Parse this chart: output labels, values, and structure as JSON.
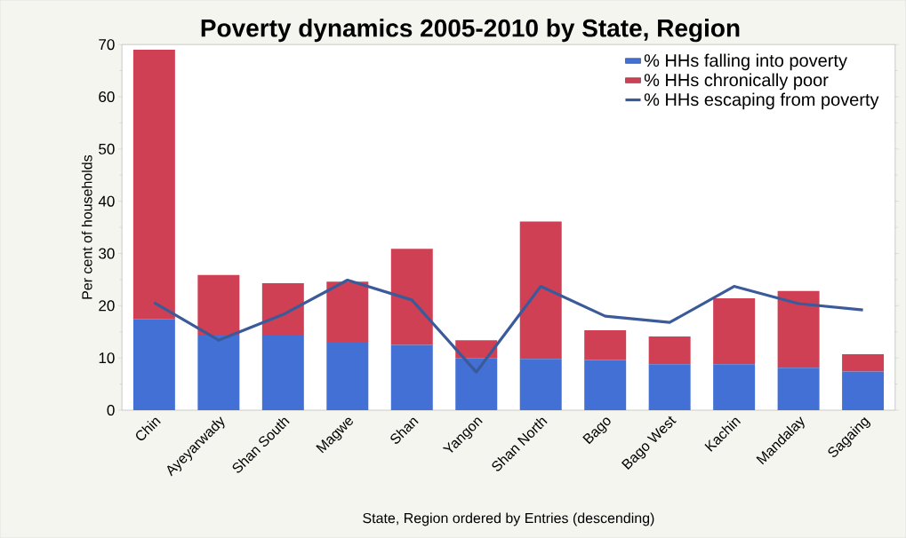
{
  "chart_data": {
    "type": "bar",
    "title": "Poverty dynamics 2005-2010 by State, Region",
    "xlabel": "State, Region ordered by Entries (descending)",
    "ylabel": "Per cent of households",
    "categories": [
      "Chin",
      "Ayeyarwady",
      "Shan South",
      "Magwe",
      "Shan",
      "Yangon",
      "Shan North",
      "Bago",
      "Bago West",
      "Kachin",
      "Mandalay",
      "Sagaing"
    ],
    "series": [
      {
        "name": "% HHs falling into poverty",
        "color": "#4270d4",
        "values": [
          17.4,
          14.3,
          14.3,
          13.1,
          12.5,
          9.9,
          9.8,
          9.6,
          8.8,
          8.8,
          8.1,
          7.4
        ]
      },
      {
        "name": "% HHs chronically poor",
        "color": "#cf4055",
        "values": [
          51.6,
          11.6,
          10.0,
          11.5,
          18.4,
          3.5,
          26.3,
          5.7,
          5.3,
          12.6,
          14.7,
          3.3
        ]
      },
      {
        "name": "% HHs escaping from poverty",
        "type": "line",
        "color": "#3b5a9a",
        "values": [
          20.6,
          13.4,
          18.3,
          24.9,
          21.1,
          7.3,
          23.7,
          18.0,
          16.8,
          23.7,
          20.4,
          19.2
        ]
      }
    ],
    "stacked": true,
    "ylim": [
      0,
      70
    ],
    "yticks": [
      0,
      10,
      20,
      30,
      40,
      50,
      60,
      70
    ],
    "legend": "top right"
  }
}
